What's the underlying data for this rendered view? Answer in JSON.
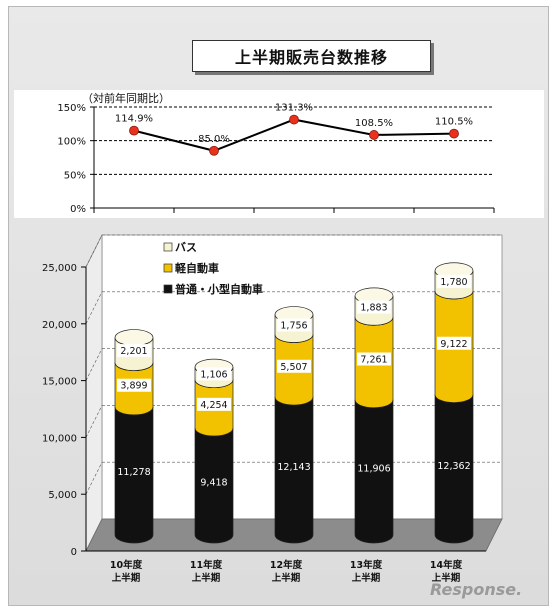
{
  "title": "上半期販売台数推移",
  "watermark": "Response.",
  "line_chart": {
    "ylabel": "（対前年同期比）",
    "yticks": [
      "0%",
      "50%",
      "100%",
      "150%"
    ],
    "ymax": 150,
    "values": [
      114.9,
      85.0,
      131.3,
      108.5,
      110.5
    ],
    "labels": [
      "114.9%",
      "85.0%",
      "131.3%",
      "108.5%",
      "110.5%"
    ],
    "colors": {
      "line": "#000000",
      "marker": "#e8321e"
    }
  },
  "chart_data": {
    "type": "bar",
    "stacked": true,
    "categories": [
      "10年度\n上半期",
      "11年度\n上半期",
      "12年度\n上半期",
      "13年度\n上半期",
      "14年度\n上半期"
    ],
    "category_lines": [
      [
        "10年度",
        "上半期"
      ],
      [
        "11年度",
        "上半期"
      ],
      [
        "12年度",
        "上半期"
      ],
      [
        "13年度",
        "上半期"
      ],
      [
        "14年度",
        "上半期"
      ]
    ],
    "series": [
      {
        "name": "普通・小型自動車",
        "values": [
          11278,
          9418,
          12143,
          11906,
          12362
        ],
        "labels": [
          "11,278",
          "9,418",
          "12,143",
          "11,906",
          "12,362"
        ],
        "color": "#111111"
      },
      {
        "name": "軽自動車",
        "values": [
          3899,
          4254,
          5507,
          7261,
          9122
        ],
        "labels": [
          "3,899",
          "4,254",
          "5,507",
          "7,261",
          "9,122"
        ],
        "color": "#f2c200"
      },
      {
        "name": "バス",
        "values": [
          2201,
          1106,
          1756,
          1883,
          1780
        ],
        "labels": [
          "2,201",
          "1,106",
          "1,756",
          "1,883",
          "1,780"
        ],
        "color": "#f6f3d2"
      }
    ],
    "yticks": [
      "0",
      "5,000",
      "10,000",
      "15,000",
      "20,000",
      "25,000"
    ],
    "ylim": [
      0,
      25000
    ],
    "legend_placement": "top-left",
    "legend": [
      "バス",
      "軽自動車",
      "普通・小型自動車"
    ]
  }
}
